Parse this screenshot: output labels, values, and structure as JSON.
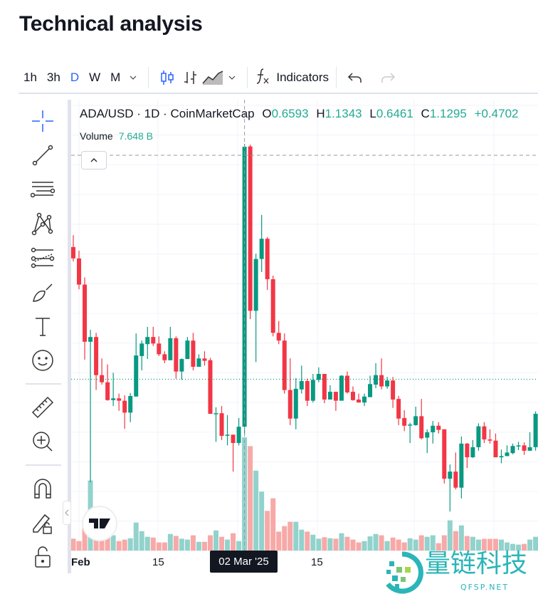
{
  "title": "Technical analysis",
  "toolbar": {
    "timeframes": [
      "1h",
      "3h",
      "D",
      "W",
      "M"
    ],
    "active_timeframe": "D",
    "indicators_label": "Indicators"
  },
  "legend": {
    "symbol": "ADA/USD · 1D · CoinMarketCap",
    "o_label": "O",
    "o": "0.6593",
    "h_label": "H",
    "h": "1.1343",
    "l_label": "L",
    "l": "0.6461",
    "c_label": "C",
    "c": "1.1295",
    "change": "+0.4702",
    "volume_label": "Volume",
    "volume": "7.648 B"
  },
  "colors": {
    "up": "#089981",
    "down": "#f23645",
    "up_vol": "#92d2cc",
    "down_vol": "#f7a9a7",
    "accent": "#2962ff"
  },
  "axis": {
    "ticks": [
      "Feb",
      "15",
      "15"
    ],
    "crosshair_date": "02 Mar '25"
  },
  "watermark": {
    "cn": "量链科技",
    "en": "QFSP.NET"
  },
  "tv_logo": "TV",
  "chart_data": {
    "type": "candlestick",
    "title": "ADA/USD · 1D · CoinMarketCap",
    "x_ticks": [
      "Feb",
      "15",
      "02 Mar '25",
      "15"
    ],
    "ylim": [
      0.5,
      1.17
    ],
    "volume_unit": "B",
    "crosshair_index": 30,
    "last_price_line": 0.739,
    "candles": [
      [
        0.961,
        0.981,
        0.937,
        0.942,
        0.8
      ],
      [
        0.942,
        0.955,
        0.89,
        0.898,
        0.64
      ],
      [
        0.898,
        0.91,
        0.772,
        0.802,
        1.57
      ],
      [
        0.802,
        0.822,
        0.566,
        0.81,
        4.73
      ],
      [
        0.81,
        0.817,
        0.721,
        0.746,
        0.8
      ],
      [
        0.746,
        0.774,
        0.73,
        0.734,
        0.8
      ],
      [
        0.734,
        0.764,
        0.703,
        0.704,
        0.93
      ],
      [
        0.704,
        0.75,
        0.694,
        0.707,
        1.03
      ],
      [
        0.707,
        0.715,
        0.686,
        0.703,
        0.64
      ],
      [
        0.703,
        0.712,
        0.656,
        0.683,
        0.74
      ],
      [
        0.683,
        0.716,
        0.667,
        0.711,
        0.83
      ],
      [
        0.71,
        0.816,
        0.71,
        0.779,
        1.89
      ],
      [
        0.778,
        0.804,
        0.754,
        0.799,
        1.31
      ],
      [
        0.798,
        0.827,
        0.773,
        0.81,
        0.93
      ],
      [
        0.81,
        0.827,
        0.795,
        0.799,
        0.88
      ],
      [
        0.799,
        0.811,
        0.778,
        0.781,
        0.55
      ],
      [
        0.781,
        0.786,
        0.766,
        0.771,
        0.55
      ],
      [
        0.771,
        0.827,
        0.771,
        0.808,
        1.12
      ],
      [
        0.808,
        0.811,
        0.74,
        0.752,
        0.99
      ],
      [
        0.752,
        0.774,
        0.738,
        0.773,
        0.8
      ],
      [
        0.773,
        0.81,
        0.773,
        0.804,
        0.74
      ],
      [
        0.804,
        0.817,
        0.754,
        0.76,
        1.03
      ],
      [
        0.76,
        0.781,
        0.76,
        0.774,
        0.59
      ],
      [
        0.774,
        0.786,
        0.762,
        0.77,
        0.59
      ],
      [
        0.771,
        0.775,
        0.681,
        0.681,
        1.03
      ],
      [
        0.681,
        0.692,
        0.634,
        0.682,
        1.36
      ],
      [
        0.682,
        0.694,
        0.637,
        0.644,
        0.93
      ],
      [
        0.645,
        0.679,
        0.628,
        0.646,
        0.74
      ],
      [
        0.646,
        0.646,
        0.584,
        0.632,
        1.17
      ],
      [
        0.632,
        0.674,
        0.628,
        0.6593,
        0.64
      ],
      [
        0.6593,
        1.1343,
        0.6461,
        1.1295,
        7.648
      ],
      [
        1.13,
        1.133,
        0.84,
        0.854,
        7.05
      ],
      [
        0.854,
        0.95,
        0.768,
        0.941,
        5.4
      ],
      [
        0.941,
        1.015,
        0.919,
        0.975,
        3.98
      ],
      [
        0.975,
        0.978,
        0.889,
        0.907,
        2.68
      ],
      [
        0.907,
        0.913,
        0.811,
        0.817,
        3.53
      ],
      [
        0.817,
        0.837,
        0.798,
        0.804,
        1.28
      ],
      [
        0.804,
        0.816,
        0.715,
        0.721,
        1.65
      ],
      [
        0.721,
        0.774,
        0.662,
        0.673,
        1.94
      ],
      [
        0.673,
        0.741,
        0.655,
        0.723,
        1.94
      ],
      [
        0.722,
        0.762,
        0.715,
        0.736,
        1.41
      ],
      [
        0.736,
        0.74,
        0.694,
        0.703,
        1.28
      ],
      [
        0.703,
        0.748,
        0.7,
        0.738,
        1.07
      ],
      [
        0.738,
        0.759,
        0.734,
        0.748,
        0.8
      ],
      [
        0.748,
        0.748,
        0.699,
        0.705,
        0.9
      ],
      [
        0.705,
        0.729,
        0.705,
        0.718,
        0.83
      ],
      [
        0.718,
        0.718,
        0.686,
        0.703,
        0.8
      ],
      [
        0.703,
        0.746,
        0.703,
        0.745,
        1.17
      ],
      [
        0.745,
        0.752,
        0.715,
        0.717,
        0.93
      ],
      [
        0.718,
        0.727,
        0.703,
        0.704,
        0.74
      ],
      [
        0.705,
        0.715,
        0.7,
        0.7,
        0.55
      ],
      [
        0.7,
        0.715,
        0.694,
        0.71,
        0.64
      ],
      [
        0.709,
        0.745,
        0.709,
        0.731,
        0.96
      ],
      [
        0.73,
        0.766,
        0.724,
        0.746,
        1.12
      ],
      [
        0.746,
        0.774,
        0.722,
        0.727,
        1.03
      ],
      [
        0.727,
        0.743,
        0.723,
        0.737,
        0.64
      ],
      [
        0.737,
        0.743,
        0.691,
        0.705,
        0.88
      ],
      [
        0.706,
        0.711,
        0.662,
        0.673,
        0.74
      ],
      [
        0.674,
        0.687,
        0.652,
        0.661,
        0.55
      ],
      [
        0.662,
        0.666,
        0.632,
        0.663,
        0.83
      ],
      [
        0.662,
        0.693,
        0.661,
        0.677,
        0.74
      ],
      [
        0.677,
        0.706,
        0.638,
        0.64,
        1.03
      ],
      [
        0.641,
        0.655,
        0.615,
        0.65,
        0.93
      ],
      [
        0.65,
        0.669,
        0.631,
        0.661,
        1.03
      ],
      [
        0.661,
        0.667,
        0.648,
        0.654,
        0.5
      ],
      [
        0.655,
        0.655,
        0.564,
        0.572,
        1.03
      ],
      [
        0.572,
        0.596,
        0.517,
        0.584,
        2.04
      ],
      [
        0.584,
        0.616,
        0.554,
        0.557,
        1.31
      ],
      [
        0.557,
        0.643,
        0.539,
        0.631,
        1.7
      ],
      [
        0.631,
        0.632,
        0.59,
        0.608,
        0.98
      ],
      [
        0.608,
        0.637,
        0.607,
        0.625,
        0.93
      ],
      [
        0.625,
        0.665,
        0.619,
        0.66,
        0.74
      ],
      [
        0.66,
        0.667,
        0.632,
        0.638,
        0.79
      ],
      [
        0.638,
        0.655,
        0.631,
        0.636,
        0.79
      ],
      [
        0.636,
        0.648,
        0.608,
        0.608,
        0.79
      ],
      [
        0.608,
        0.621,
        0.598,
        0.61,
        0.74
      ],
      [
        0.61,
        0.628,
        0.61,
        0.616,
        0.55
      ],
      [
        0.615,
        0.631,
        0.613,
        0.627,
        0.45
      ],
      [
        0.627,
        0.634,
        0.62,
        0.628,
        0.4
      ],
      [
        0.628,
        0.633,
        0.612,
        0.619,
        0.45
      ],
      [
        0.619,
        0.65,
        0.619,
        0.625,
        0.74
      ],
      [
        0.625,
        0.685,
        0.619,
        0.681,
        0.93
      ]
    ]
  }
}
